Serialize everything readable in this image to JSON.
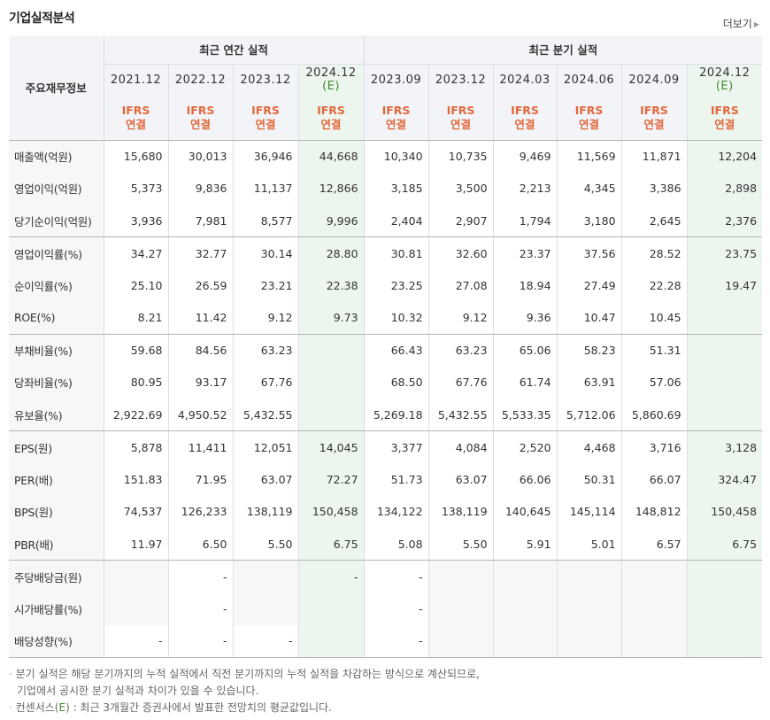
{
  "section": {
    "title": "기업실적분석",
    "more_label": "더보기"
  },
  "header": {
    "row_header_label": "주요재무정보",
    "group_annual": "최근 연간 실적",
    "group_quarter": "최근 분기 실적",
    "periods": [
      {
        "date": "2021.12",
        "est": ""
      },
      {
        "date": "2022.12",
        "est": ""
      },
      {
        "date": "2023.12",
        "est": ""
      },
      {
        "date": "2024.12",
        "est": "(E)"
      },
      {
        "date": "2023.09",
        "est": ""
      },
      {
        "date": "2023.12",
        "est": ""
      },
      {
        "date": "2024.03",
        "est": ""
      },
      {
        "date": "2024.06",
        "est": ""
      },
      {
        "date": "2024.09",
        "est": ""
      },
      {
        "date": "2024.12",
        "est": "(E)"
      }
    ],
    "ifrs_line1": "IFRS",
    "ifrs_line2": "연결"
  },
  "rows": [
    {
      "label": "매출액(억원)",
      "values": [
        "15,680",
        "30,013",
        "36,946",
        "44,668",
        "10,340",
        "10,735",
        "9,469",
        "11,569",
        "11,871",
        "12,204"
      ]
    },
    {
      "label": "영업이익(억원)",
      "values": [
        "5,373",
        "9,836",
        "11,137",
        "12,866",
        "3,185",
        "3,500",
        "2,213",
        "4,345",
        "3,386",
        "2,898"
      ]
    },
    {
      "label": "당기순이익(억원)",
      "values": [
        "3,936",
        "7,981",
        "8,577",
        "9,996",
        "2,404",
        "2,907",
        "1,794",
        "3,180",
        "2,645",
        "2,376"
      ]
    },
    {
      "label": "영업이익률(%)",
      "values": [
        "34.27",
        "32.77",
        "30.14",
        "28.80",
        "30.81",
        "32.60",
        "23.37",
        "37.56",
        "28.52",
        "23.75"
      ]
    },
    {
      "label": "순이익률(%)",
      "values": [
        "25.10",
        "26.59",
        "23.21",
        "22.38",
        "23.25",
        "27.08",
        "18.94",
        "27.49",
        "22.28",
        "19.47"
      ]
    },
    {
      "label": "ROE(%)",
      "values": [
        "8.21",
        "11.42",
        "9.12",
        "9.73",
        "10.32",
        "9.12",
        "9.36",
        "10.47",
        "10.45",
        ""
      ]
    },
    {
      "label": "부채비율(%)",
      "values": [
        "59.68",
        "84.56",
        "63.23",
        "",
        "66.43",
        "63.23",
        "65.06",
        "58.23",
        "51.31",
        ""
      ]
    },
    {
      "label": "당좌비율(%)",
      "values": [
        "80.95",
        "93.17",
        "67.76",
        "",
        "68.50",
        "67.76",
        "61.74",
        "63.91",
        "57.06",
        ""
      ]
    },
    {
      "label": "유보율(%)",
      "values": [
        "2,922.69",
        "4,950.52",
        "5,432.55",
        "",
        "5,269.18",
        "5,432.55",
        "5,533.35",
        "5,712.06",
        "5,860.69",
        ""
      ]
    },
    {
      "label": "EPS(원)",
      "values": [
        "5,878",
        "11,411",
        "12,051",
        "14,045",
        "3,377",
        "4,084",
        "2,520",
        "4,468",
        "3,716",
        "3,128"
      ]
    },
    {
      "label": "PER(배)",
      "values": [
        "151.83",
        "71.95",
        "63.07",
        "72.27",
        "51.73",
        "63.07",
        "66.06",
        "50.31",
        "66.07",
        "324.47"
      ]
    },
    {
      "label": "BPS(원)",
      "values": [
        "74,537",
        "126,233",
        "138,119",
        "150,458",
        "134,122",
        "138,119",
        "140,645",
        "145,114",
        "148,812",
        "150,458"
      ]
    },
    {
      "label": "PBR(배)",
      "values": [
        "11.97",
        "6.50",
        "5.50",
        "6.75",
        "5.08",
        "5.50",
        "5.91",
        "5.01",
        "6.57",
        "6.75"
      ]
    },
    {
      "label": "주당배당금(원)",
      "values": [
        "",
        "-",
        "",
        "-",
        "-",
        "",
        "",
        "",
        "",
        ""
      ]
    },
    {
      "label": "시가배당률(%)",
      "values": [
        "",
        "-",
        "",
        "",
        "-",
        "",
        "",
        "",
        "",
        ""
      ]
    },
    {
      "label": "배당성향(%)",
      "values": [
        "-",
        "-",
        "-",
        "",
        "-",
        "",
        "",
        "",
        "",
        ""
      ]
    }
  ],
  "notes": {
    "line1": "분기 실적은 해당 분기까지의 누적 실적에서 직전 분기까지의 누적 실적을 차감하는 방식으로 계산되므로,",
    "line2": "기업에서 공시한 분기 실적과 차이가 있을 수 있습니다.",
    "line3_pre": "컨센서스(",
    "line3_e": "E",
    "line3_post": ") : 최근 3개월간 증권사에서 발표한 전망치의 평균값입니다."
  }
}
